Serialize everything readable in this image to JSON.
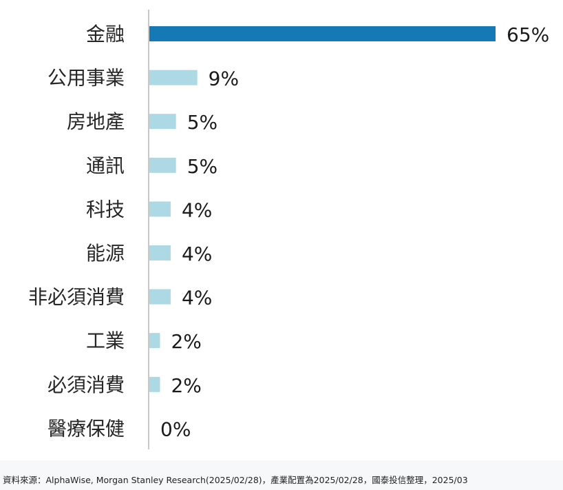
{
  "chart_data": {
    "type": "bar",
    "orientation": "horizontal",
    "categories": [
      "金融",
      "公用事業",
      "房地產",
      "通訊",
      "科技",
      "能源",
      "非必須消費",
      "工業",
      "必須消費",
      "醫療保健"
    ],
    "values": [
      65,
      9,
      5,
      5,
      4,
      4,
      4,
      2,
      2,
      0
    ],
    "value_labels": [
      "65%",
      "9%",
      "5%",
      "5%",
      "4%",
      "4%",
      "4%",
      "2%",
      "2%",
      "0%"
    ],
    "unit": "%",
    "xlim": [
      0,
      65
    ],
    "grid": false,
    "legend": "none",
    "colors": {
      "highlight": "#1479b4",
      "default": "#acd9e3",
      "axis": "#c8c8c8"
    }
  },
  "footer": {
    "source_note": "資料來源：AlphaWise, Morgan Stanley Research(2025/02/28)，產業配置為2025/02/28，國泰投信整理，2025/03"
  }
}
